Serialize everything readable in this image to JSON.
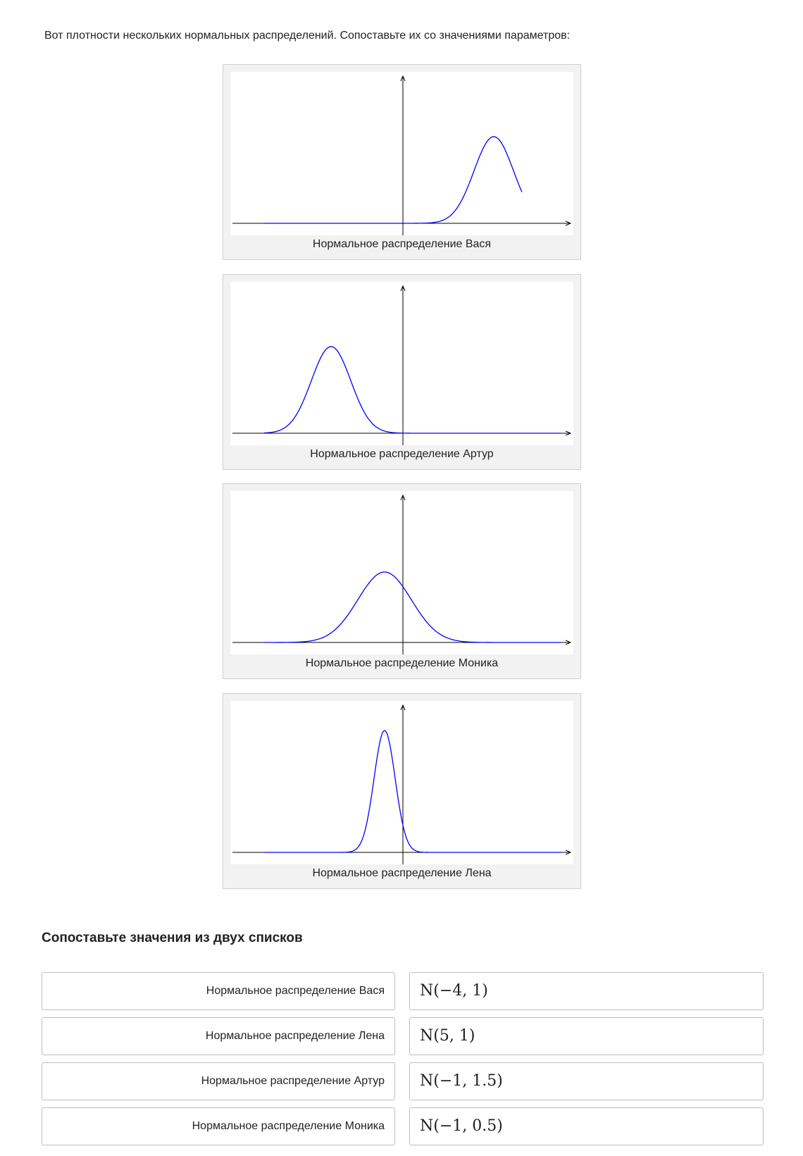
{
  "intro_text": "Вот плотности нескольких нормальных распределений. Сопоставьте их со значениями параметров:",
  "figures": [
    {
      "caption": "Нормальное распределение Вася"
    },
    {
      "caption": "Нормальное распределение Артур"
    },
    {
      "caption": "Нормальное распределение Моника"
    },
    {
      "caption": "Нормальное распределение Лена"
    }
  ],
  "curve_color": "#0000ff",
  "match": {
    "title": "Сопоставьте значения из двух списков",
    "left": [
      "Нормальное распределение Вася",
      "Нормальное распределение Лена",
      "Нормальное распределение Артур",
      "Нормальное распределение Моника"
    ],
    "right": [
      "N(−4, 1)",
      "N(5, 1)",
      "N(−1, 1.5)",
      "N(−1, 0.5)"
    ]
  }
}
